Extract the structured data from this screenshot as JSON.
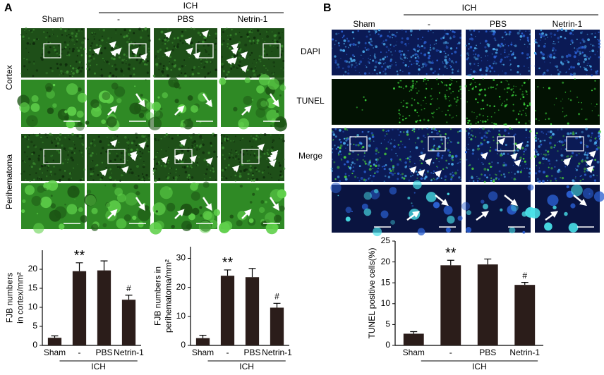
{
  "panel_a": {
    "label": "A",
    "group": "ICH",
    "columns": [
      "Sham",
      "-",
      "PBS",
      "Netrin-1"
    ],
    "rows": [
      "Cortex",
      "Perihematoma"
    ]
  },
  "panel_b": {
    "label": "B",
    "group": "ICH",
    "columns": [
      "Sham",
      "-",
      "PBS",
      "Netrin-1"
    ],
    "rows": [
      "DAPI",
      "TUNEL",
      "Merge"
    ]
  },
  "chart_data": [
    {
      "type": "bar",
      "y_label": [
        "FJB numbers",
        "in cortex/mm²"
      ],
      "categories": [
        "Sham",
        "-",
        "PBS",
        "Netrin-1"
      ],
      "group_label": "ICH",
      "values": [
        2,
        19.5,
        19.7,
        12
      ],
      "errors": [
        0.5,
        2.2,
        2.5,
        1.2
      ],
      "bar_annotations": [
        null,
        "**",
        null,
        "#"
      ],
      "color": "#2b1d1a",
      "ylim": [
        0,
        25
      ],
      "yticks": [
        0,
        5,
        10,
        15,
        20
      ]
    },
    {
      "type": "bar",
      "y_label": [
        "FJB numbers in",
        "perihematoma/mm²"
      ],
      "categories": [
        "Sham",
        "-",
        "PBS",
        "Netrin-1"
      ],
      "group_label": "ICH",
      "values": [
        2.5,
        24,
        23.5,
        13
      ],
      "errors": [
        1,
        2,
        3,
        1.5
      ],
      "bar_annotations": [
        null,
        "**",
        null,
        "#"
      ],
      "color": "#2b1d1a",
      "ylim": [
        0,
        34
      ],
      "yticks": [
        0,
        10,
        20,
        30
      ]
    },
    {
      "type": "bar",
      "y_label": [
        "TUNEL positive cells(%)"
      ],
      "categories": [
        "Sham",
        "-",
        "PBS",
        "Netrin-1"
      ],
      "group_label": "ICH",
      "values": [
        2.8,
        19.2,
        19.4,
        14.5
      ],
      "errors": [
        0.5,
        1.2,
        1.3,
        0.6
      ],
      "bar_annotations": [
        null,
        "**",
        null,
        "#"
      ],
      "color": "#2b1d1a",
      "ylim": [
        0,
        25
      ],
      "yticks": [
        0,
        5,
        10,
        15,
        20,
        25
      ]
    }
  ]
}
